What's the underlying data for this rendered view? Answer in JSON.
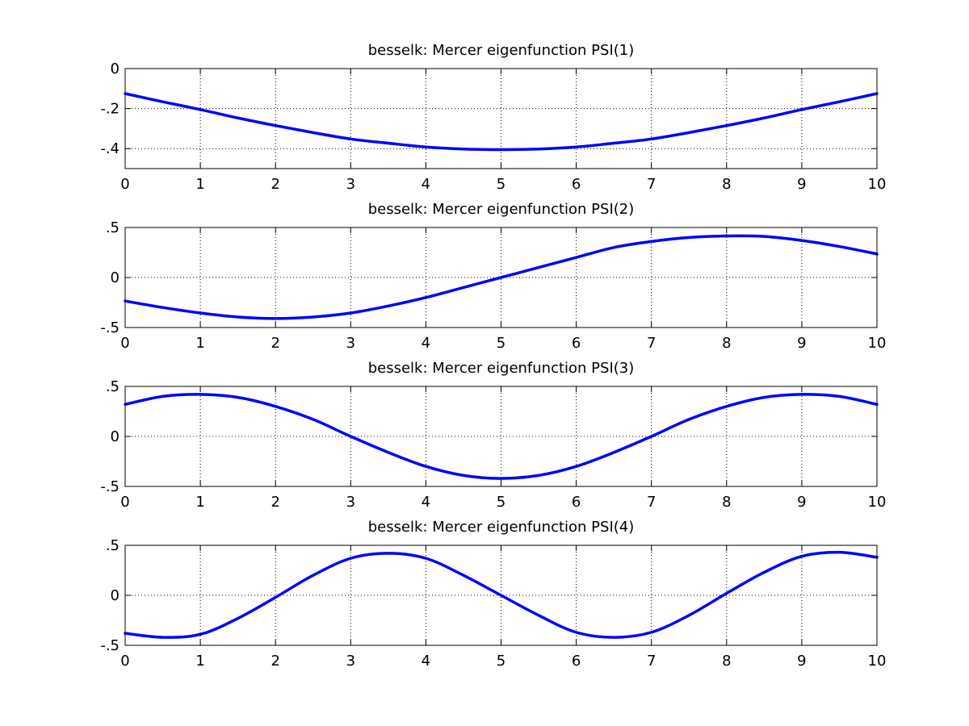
{
  "chart_data": [
    {
      "type": "line",
      "title": "besselk: Mercer eigenfunction PSI(1)",
      "xlabel": "",
      "ylabel": "",
      "xlim": [
        0,
        10
      ],
      "ylim": [
        -0.5,
        0
      ],
      "xticks": [
        0,
        1,
        2,
        3,
        4,
        5,
        6,
        7,
        8,
        9,
        10
      ],
      "yticks": [
        0,
        -0.2,
        -0.4
      ],
      "grid": true,
      "line_color": "#0000ff",
      "x": [
        0,
        0.5,
        1,
        1.5,
        2,
        2.5,
        3,
        3.5,
        4,
        4.5,
        5,
        5.5,
        6,
        6.5,
        7,
        7.5,
        8,
        8.5,
        9,
        9.5,
        10
      ],
      "series": [
        {
          "values": [
            -0.125,
            -0.166,
            -0.205,
            -0.247,
            -0.285,
            -0.32,
            -0.352,
            -0.373,
            -0.392,
            -0.402,
            -0.405,
            -0.402,
            -0.392,
            -0.373,
            -0.352,
            -0.32,
            -0.285,
            -0.247,
            -0.205,
            -0.166,
            -0.125
          ]
        }
      ]
    },
    {
      "type": "line",
      "title": "besselk: Mercer eigenfunction PSI(2)",
      "xlabel": "",
      "ylabel": "",
      "xlim": [
        0,
        10
      ],
      "ylim": [
        -0.5,
        0.5
      ],
      "xticks": [
        0,
        1,
        2,
        3,
        4,
        5,
        6,
        7,
        8,
        9,
        10
      ],
      "yticks": [
        0.5,
        0,
        -0.5
      ],
      "grid": true,
      "line_color": "#0000ff",
      "x": [
        0,
        0.5,
        1,
        1.5,
        2,
        2.5,
        3,
        3.5,
        4,
        4.5,
        5,
        5.5,
        6,
        6.5,
        7,
        7.5,
        8,
        8.5,
        9,
        9.5,
        10
      ],
      "series": [
        {
          "values": [
            -0.235,
            -0.3,
            -0.355,
            -0.395,
            -0.41,
            -0.395,
            -0.355,
            -0.285,
            -0.2,
            -0.1,
            0.0,
            0.1,
            0.2,
            0.3,
            0.36,
            0.4,
            0.415,
            0.41,
            0.37,
            0.31,
            0.235
          ]
        }
      ]
    },
    {
      "type": "line",
      "title": "besselk: Mercer eigenfunction PSI(3)",
      "xlabel": "",
      "ylabel": "",
      "xlim": [
        0,
        10
      ],
      "ylim": [
        -0.5,
        0.5
      ],
      "xticks": [
        0,
        1,
        2,
        3,
        4,
        5,
        6,
        7,
        8,
        9,
        10
      ],
      "yticks": [
        0.5,
        0,
        -0.5
      ],
      "grid": true,
      "line_color": "#0000ff",
      "x": [
        0,
        0.5,
        1,
        1.5,
        2,
        2.5,
        3,
        3.5,
        4,
        4.5,
        5,
        5.5,
        6,
        6.5,
        7,
        7.5,
        8,
        8.5,
        9,
        9.5,
        10
      ],
      "series": [
        {
          "values": [
            0.32,
            0.4,
            0.42,
            0.39,
            0.3,
            0.17,
            0.0,
            -0.16,
            -0.3,
            -0.39,
            -0.42,
            -0.39,
            -0.3,
            -0.16,
            0.0,
            0.17,
            0.3,
            0.39,
            0.42,
            0.4,
            0.32
          ]
        }
      ]
    },
    {
      "type": "line",
      "title": "besselk: Mercer eigenfunction PSI(4)",
      "xlabel": "",
      "ylabel": "",
      "xlim": [
        0,
        10
      ],
      "ylim": [
        -0.5,
        0.5
      ],
      "xticks": [
        0,
        1,
        2,
        3,
        4,
        5,
        6,
        7,
        8,
        9,
        10
      ],
      "yticks": [
        0.5,
        0,
        -0.5
      ],
      "grid": true,
      "line_color": "#0000ff",
      "x": [
        0,
        0.5,
        1,
        1.5,
        2,
        2.5,
        3,
        3.5,
        4,
        4.5,
        5,
        5.5,
        6,
        6.5,
        7,
        7.5,
        8,
        8.5,
        9,
        9.5,
        10
      ],
      "series": [
        {
          "values": [
            -0.38,
            -0.42,
            -0.39,
            -0.23,
            -0.02,
            0.2,
            0.37,
            0.42,
            0.37,
            0.2,
            0.0,
            -0.2,
            -0.37,
            -0.42,
            -0.37,
            -0.2,
            0.02,
            0.23,
            0.39,
            0.43,
            0.38
          ]
        }
      ]
    }
  ]
}
